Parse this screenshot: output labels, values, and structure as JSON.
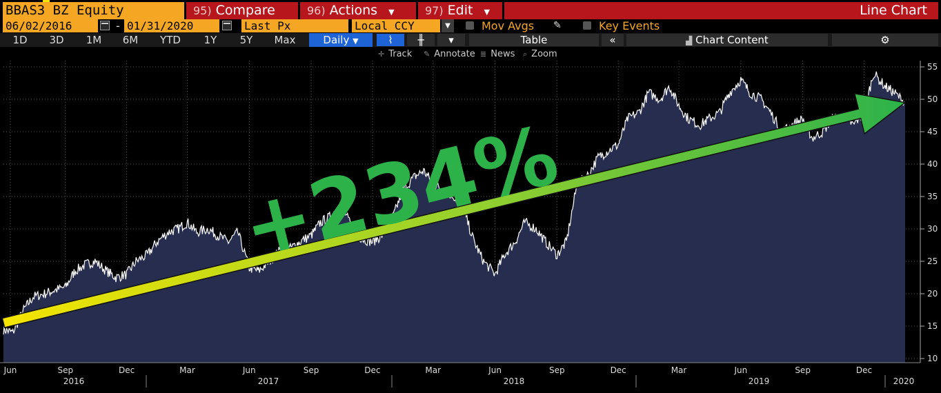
{
  "toolbar": {
    "ticker": "BBAS3 BZ Equity",
    "compare_num": "95)",
    "compare_label": "Compare",
    "actions_num": "96)",
    "actions_label": "Actions",
    "edit_num": "97)",
    "edit_label": "Edit",
    "chart_type": "Line Chart"
  },
  "controls": {
    "start_date": "06/02/2016",
    "end_date": "01/31/2020",
    "date_sep": "-",
    "field": "Last Px",
    "currency": "Local CCY",
    "mov_avgs": "Mov Avgs",
    "key_events": "Key Events"
  },
  "timeframes": [
    "1D",
    "3D",
    "1M",
    "6M",
    "YTD",
    "1Y",
    "5Y",
    "Max"
  ],
  "periodicity": "Daily",
  "panel": {
    "table_label": "Table",
    "collapse": "«",
    "chart_content": "Chart Content"
  },
  "tools": {
    "track": "Track",
    "annotate": "Annotate",
    "news": "News",
    "zoom": "Zoom"
  },
  "colors": {
    "accent_orange": "#f5a623",
    "button_red": "#b7171c",
    "selected_blue": "#1e64d6",
    "area_fill": "#262d4f",
    "annotation_green": "#2db24a",
    "arrow_start": "#f5e400"
  },
  "chart_data": {
    "type": "area",
    "title": "",
    "xlabel": "",
    "ylabel": "",
    "ylim": [
      10,
      56
    ],
    "yticks": [
      10,
      15,
      20,
      25,
      30,
      35,
      40,
      45,
      50,
      55
    ],
    "x_month_ticks": [
      "Jun",
      "Sep",
      "Dec",
      "Mar",
      "Jun",
      "Sep",
      "Dec",
      "Mar",
      "Jun",
      "Sep",
      "Dec",
      "Mar",
      "Jun",
      "Sep",
      "Dec"
    ],
    "x_years": [
      "2016",
      "2017",
      "2018",
      "2019",
      "2020"
    ],
    "series": [
      {
        "x": [
          "2016-06-01",
          "2016-06-15",
          "2016-07-01",
          "2016-07-15",
          "2016-08-01",
          "2016-08-15",
          "2016-09-01",
          "2016-09-15",
          "2016-10-01",
          "2016-10-15",
          "2016-11-01",
          "2016-11-15",
          "2016-12-01",
          "2016-12-15",
          "2017-01-01",
          "2017-01-15",
          "2017-02-01",
          "2017-02-15",
          "2017-03-01",
          "2017-03-15",
          "2017-04-01",
          "2017-04-15",
          "2017-05-01",
          "2017-05-15",
          "2017-06-01",
          "2017-06-15",
          "2017-07-01",
          "2017-07-15",
          "2017-08-01",
          "2017-08-15",
          "2017-09-01",
          "2017-09-15",
          "2017-10-01",
          "2017-10-15",
          "2017-11-01",
          "2017-11-15",
          "2017-12-01",
          "2017-12-15",
          "2018-01-01",
          "2018-01-15",
          "2018-02-01",
          "2018-02-15",
          "2018-03-01",
          "2018-03-15",
          "2018-04-01",
          "2018-04-15",
          "2018-05-01",
          "2018-05-15",
          "2018-06-01",
          "2018-06-15",
          "2018-07-01",
          "2018-07-15",
          "2018-08-01",
          "2018-08-15",
          "2018-09-01",
          "2018-09-15",
          "2018-10-01",
          "2018-10-15",
          "2018-11-01",
          "2018-11-15",
          "2018-12-01",
          "2018-12-15",
          "2019-01-01",
          "2019-01-15",
          "2019-02-01",
          "2019-02-15",
          "2019-03-01",
          "2019-03-15",
          "2019-04-01",
          "2019-04-15",
          "2019-05-01",
          "2019-05-15",
          "2019-06-01",
          "2019-06-15",
          "2019-07-01",
          "2019-07-15",
          "2019-08-01",
          "2019-08-15",
          "2019-09-01",
          "2019-09-15",
          "2019-10-01",
          "2019-10-15",
          "2019-11-01",
          "2019-11-15",
          "2019-12-01",
          "2019-12-15",
          "2020-01-01",
          "2020-01-15",
          "2020-01-31"
        ],
        "y": [
          14.5,
          14.0,
          17.5,
          19.5,
          20.0,
          20.5,
          21.0,
          23.5,
          24.5,
          25.0,
          23.5,
          22.5,
          23.0,
          25.0,
          26.0,
          28.0,
          29.5,
          30.0,
          31.0,
          29.5,
          30.0,
          29.0,
          28.0,
          29.5,
          24.0,
          23.5,
          25.0,
          26.5,
          27.0,
          28.0,
          29.0,
          31.0,
          32.0,
          34.0,
          30.0,
          28.5,
          28.0,
          29.0,
          32.0,
          36.0,
          38.0,
          39.0,
          37.0,
          36.0,
          35.0,
          33.0,
          28.0,
          25.0,
          23.0,
          26.0,
          28.0,
          31.0,
          30.0,
          28.0,
          26.0,
          28.0,
          37.0,
          38.0,
          41.0,
          42.0,
          43.0,
          47.0,
          48.0,
          51.0,
          50.0,
          52.0,
          49.0,
          47.0,
          46.0,
          47.0,
          48.0,
          51.0,
          53.0,
          51.0,
          50.0,
          48.0,
          45.0,
          46.0,
          47.0,
          44.0,
          45.0,
          47.0,
          47.5,
          46.0,
          48.0,
          54.0,
          52.0,
          51.0,
          49.5
        ]
      }
    ],
    "annotation": {
      "text": "+234%"
    },
    "arrow": {
      "from": {
        "x": "2016-06-01",
        "y": 15.5
      },
      "to": {
        "x": "2020-01-31",
        "y": 49.5
      }
    }
  }
}
